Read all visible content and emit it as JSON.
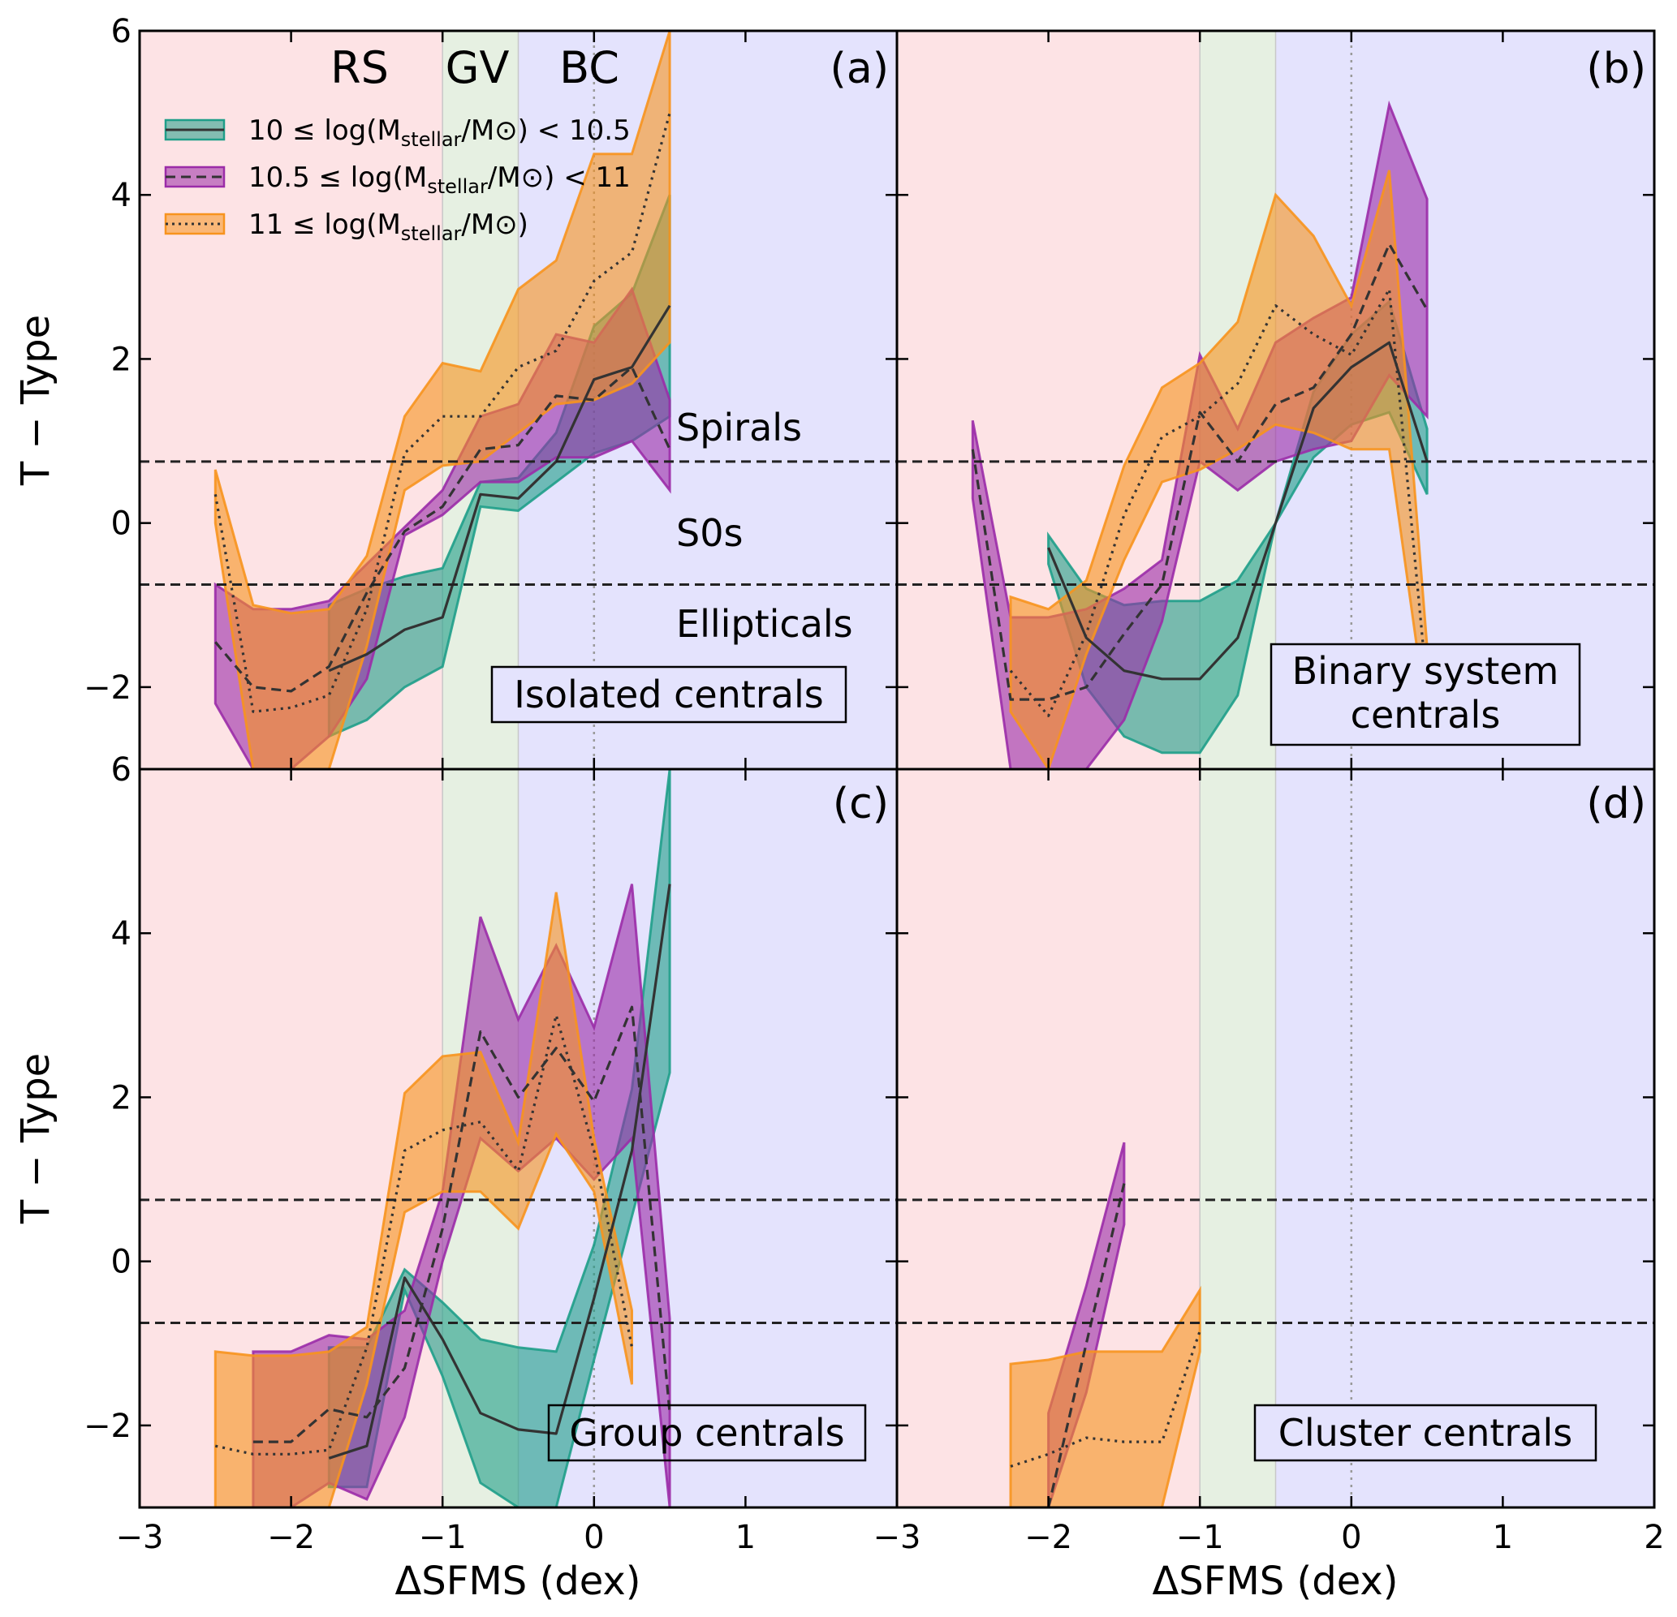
{
  "chart_data": {
    "type": "area",
    "xlabel": "ΔSFMS (dex)",
    "ylabel": "T − Type",
    "xlim": [
      -3,
      2
    ],
    "ylim": [
      -3,
      6
    ],
    "x_ticks": [
      -3,
      -2,
      -1,
      0,
      1,
      2
    ],
    "x_tick_labels": [
      "−3",
      "−2",
      "−1",
      "0",
      "1",
      "2"
    ],
    "y_ticks": [
      -2,
      0,
      2,
      4,
      6
    ],
    "y_tick_labels": [
      "−2",
      "0",
      "2",
      "4",
      "6"
    ],
    "regions": [
      {
        "label": "RS",
        "from": -3,
        "to": -1,
        "color": "#fde3e5"
      },
      {
        "label": "GV",
        "from": -1,
        "to": -0.5,
        "color": "#e6f0e2"
      },
      {
        "label": "BC",
        "from": -0.5,
        "to": 2,
        "color": "#e4e3fd"
      }
    ],
    "threshold_lines": [
      0.75,
      -0.75
    ],
    "class_labels": [
      "Spirals",
      "S0s",
      "Ellipticals"
    ],
    "colors": {
      "low": "#1f9e89",
      "mid": "#9b2ca8",
      "high": "#f7931e",
      "line": "#333333"
    },
    "legend": [
      {
        "key": "low",
        "style": "solid",
        "prefix": "10 ≤ log(M",
        "sub": "stellar",
        "suffix": "/M⊙) < 10.5"
      },
      {
        "key": "mid",
        "style": "dashed",
        "prefix": "10.5 ≤ log(M",
        "sub": "stellar",
        "suffix": "/M⊙) < 11"
      },
      {
        "key": "high",
        "style": "dotted",
        "prefix": "11 ≤ log(M",
        "sub": "stellar",
        "suffix": "/M⊙)"
      }
    ],
    "panels": [
      {
        "letter": "(a)",
        "title": [
          "Isolated centrals"
        ],
        "series": [
          {
            "key": "low",
            "x": [
              -1.75,
              -1.5,
              -1.25,
              -1.0,
              -0.75,
              -0.5,
              -0.25,
              0.0,
              0.25,
              0.5
            ],
            "mid": [
              -1.8,
              -1.6,
              -1.3,
              -1.15,
              0.35,
              0.3,
              0.75,
              1.75,
              1.9,
              2.65
            ],
            "lo": [
              -2.6,
              -2.4,
              -2.0,
              -1.75,
              0.2,
              0.15,
              0.5,
              0.85,
              1.0,
              1.3
            ],
            "hi": [
              -1.0,
              -0.8,
              -0.65,
              -0.55,
              0.5,
              0.55,
              1.1,
              2.4,
              2.8,
              4.0
            ]
          },
          {
            "key": "mid",
            "x": [
              -2.5,
              -2.25,
              -2.0,
              -1.75,
              -1.5,
              -1.25,
              -1.0,
              -0.75,
              -0.5,
              -0.25,
              0.0,
              0.25,
              0.5
            ],
            "mid": [
              -1.45,
              -2.0,
              -2.05,
              -1.75,
              -0.85,
              -0.1,
              0.2,
              0.9,
              0.95,
              1.55,
              1.5,
              1.9,
              0.9
            ],
            "lo": [
              -2.2,
              -3.0,
              -3.0,
              -2.6,
              -1.9,
              -0.15,
              0.1,
              0.5,
              0.5,
              0.8,
              0.8,
              1.0,
              0.4
            ],
            "hi": [
              -0.75,
              -1.05,
              -1.05,
              -0.95,
              -0.5,
              -0.05,
              0.4,
              1.3,
              1.45,
              2.3,
              2.2,
              2.85,
              1.5
            ]
          },
          {
            "key": "high",
            "x": [
              -2.5,
              -2.25,
              -2.0,
              -1.75,
              -1.5,
              -1.25,
              -1.0,
              -0.75,
              -0.5,
              -0.25,
              0.0,
              0.25,
              0.5
            ],
            "mid": [
              0.35,
              -2.3,
              -2.25,
              -2.1,
              -1.05,
              0.85,
              1.3,
              1.3,
              1.9,
              2.1,
              2.95,
              3.3,
              5.0
            ],
            "lo": [
              0.0,
              -3.0,
              -3.0,
              -3.0,
              -1.5,
              0.4,
              0.7,
              0.75,
              1.1,
              1.45,
              1.5,
              1.7,
              2.2
            ],
            "hi": [
              0.65,
              -1.0,
              -1.1,
              -1.05,
              -0.4,
              1.3,
              1.95,
              1.85,
              2.85,
              3.2,
              4.5,
              4.5,
              6.0
            ]
          }
        ]
      },
      {
        "letter": "(b)",
        "title": [
          "Binary system",
          "centrals"
        ],
        "series": [
          {
            "key": "low",
            "x": [
              -2.0,
              -1.75,
              -1.5,
              -1.25,
              -1.0,
              -0.75,
              -0.5,
              -0.25,
              0.0,
              0.25,
              0.5
            ],
            "mid": [
              -0.3,
              -1.4,
              -1.8,
              -1.9,
              -1.9,
              -1.4,
              0.0,
              1.4,
              1.9,
              2.2,
              0.75
            ],
            "lo": [
              -0.5,
              -2.0,
              -2.6,
              -2.8,
              -2.8,
              -2.1,
              0.0,
              0.8,
              1.2,
              1.35,
              0.35
            ],
            "hi": [
              -0.15,
              -0.8,
              -1.0,
              -0.95,
              -0.95,
              -0.7,
              0.0,
              1.6,
              2.3,
              2.7,
              1.15
            ]
          },
          {
            "key": "mid",
            "x": [
              -2.5,
              -2.25,
              -2.0,
              -1.75,
              -1.5,
              -1.25,
              -1.0,
              -0.75,
              -0.5,
              -0.25,
              0.0,
              0.25,
              0.5
            ],
            "mid": [
              0.9,
              -2.15,
              -2.15,
              -2.0,
              -1.35,
              -0.75,
              1.35,
              0.75,
              1.45,
              1.65,
              2.3,
              3.4,
              2.6
            ],
            "lo": [
              0.3,
              -3.0,
              -3.0,
              -3.0,
              -2.4,
              -1.2,
              0.75,
              0.4,
              0.75,
              0.9,
              1.0,
              1.8,
              1.3
            ],
            "hi": [
              1.25,
              -1.15,
              -1.15,
              -1.05,
              -0.8,
              -0.45,
              2.05,
              1.15,
              2.2,
              2.5,
              2.75,
              5.1,
              3.95
            ]
          },
          {
            "key": "high",
            "x": [
              -2.25,
              -2.0,
              -1.75,
              -1.5,
              -1.25,
              -1.0,
              -0.75,
              -0.5,
              -0.25,
              0.0,
              0.25,
              0.5
            ],
            "mid": [
              -1.8,
              -2.35,
              -1.35,
              0.1,
              1.05,
              1.3,
              1.7,
              2.65,
              2.3,
              2.05,
              2.85,
              -2.0
            ],
            "lo": [
              -2.3,
              -3.0,
              -1.6,
              -0.45,
              0.5,
              0.65,
              0.9,
              1.2,
              1.1,
              0.9,
              0.9,
              -2.4
            ],
            "hi": [
              -0.9,
              -1.05,
              -0.7,
              0.7,
              1.65,
              1.95,
              2.45,
              4.0,
              3.5,
              2.65,
              4.3,
              -1.5
            ]
          }
        ]
      },
      {
        "letter": "(c)",
        "title": [
          "Group centrals"
        ],
        "series": [
          {
            "key": "low",
            "x": [
              -1.75,
              -1.5,
              -1.25,
              -1.0,
              -0.75,
              -0.5,
              -0.25,
              0.0,
              0.25,
              0.5
            ],
            "mid": [
              -2.4,
              -2.25,
              -0.2,
              -0.95,
              -1.85,
              -2.05,
              -2.1,
              -0.45,
              1.35,
              4.6
            ],
            "lo": [
              -2.75,
              -2.75,
              -0.35,
              -1.4,
              -2.7,
              -3.0,
              -3.0,
              -1.2,
              0.55,
              2.3
            ],
            "hi": [
              -1.05,
              -1.05,
              -0.1,
              -0.5,
              -0.95,
              -1.05,
              -1.1,
              0.2,
              2.1,
              6.0
            ]
          },
          {
            "key": "mid",
            "x": [
              -2.25,
              -2.0,
              -1.75,
              -1.5,
              -1.25,
              -1.0,
              -0.75,
              -0.5,
              -0.25,
              0.0,
              0.25,
              0.5
            ],
            "mid": [
              -2.2,
              -2.2,
              -1.8,
              -1.9,
              -1.3,
              0.4,
              2.8,
              2.0,
              2.6,
              1.95,
              3.1,
              -1.85
            ],
            "lo": [
              -3.0,
              -3.0,
              -2.7,
              -2.9,
              -1.9,
              0.0,
              1.5,
              1.1,
              1.5,
              1.0,
              1.5,
              -3.0
            ],
            "hi": [
              -1.1,
              -1.1,
              -0.9,
              -0.95,
              -0.6,
              0.85,
              4.2,
              2.95,
              3.85,
              2.85,
              4.6,
              -0.7
            ]
          },
          {
            "key": "high",
            "x": [
              -2.5,
              -2.25,
              -2.0,
              -1.75,
              -1.5,
              -1.25,
              -1.0,
              -0.75,
              -0.5,
              -0.25,
              0.0,
              0.25
            ],
            "mid": [
              -2.25,
              -2.35,
              -2.35,
              -2.3,
              -1.05,
              1.35,
              1.6,
              1.7,
              1.1,
              3.0,
              1.35,
              -1.05
            ],
            "lo": [
              -3.0,
              -3.0,
              -3.0,
              -3.0,
              -1.5,
              0.6,
              0.85,
              0.85,
              0.4,
              1.55,
              0.85,
              -1.5
            ],
            "hi": [
              -1.1,
              -1.15,
              -1.15,
              -1.1,
              -0.8,
              2.05,
              2.5,
              2.55,
              1.45,
              4.5,
              1.5,
              -0.6
            ]
          }
        ]
      },
      {
        "letter": "(d)",
        "title": [
          "Cluster centrals"
        ],
        "series": [
          {
            "key": "mid",
            "x": [
              -2.0,
              -1.75,
              -1.5
            ],
            "mid": [
              -3.0,
              -1.0,
              0.95
            ],
            "lo": [
              -3.0,
              -1.6,
              0.45
            ],
            "hi": [
              -1.85,
              -0.3,
              1.45
            ]
          },
          {
            "key": "high",
            "x": [
              -2.25,
              -2.0,
              -1.75,
              -1.5,
              -1.25,
              -1.0
            ],
            "mid": [
              -2.5,
              -2.35,
              -2.15,
              -2.2,
              -2.2,
              -0.85
            ],
            "lo": [
              -3.0,
              -3.0,
              -3.0,
              -3.0,
              -3.0,
              -1.1
            ],
            "hi": [
              -1.25,
              -1.2,
              -1.1,
              -1.1,
              -1.1,
              -0.35
            ]
          }
        ]
      }
    ]
  }
}
